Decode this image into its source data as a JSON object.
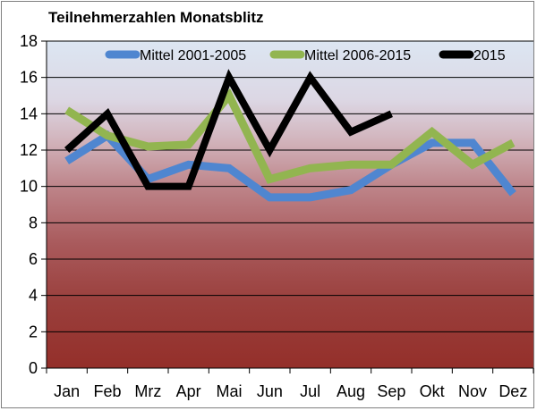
{
  "chart_data": {
    "type": "line",
    "title": "Teilnehmerzahlen Monatsblitz",
    "xlabel": "",
    "ylabel": "",
    "categories": [
      "Jan",
      "Feb",
      "Mrz",
      "Apr",
      "Mai",
      "Jun",
      "Jul",
      "Aug",
      "Sep",
      "Okt",
      "Nov",
      "Dez"
    ],
    "ylim": [
      0,
      18
    ],
    "yticks": [
      0,
      2,
      4,
      6,
      8,
      10,
      12,
      14,
      16,
      18
    ],
    "grid": true,
    "legend_position": "top",
    "series": [
      {
        "name": "Mittel 2001-2005",
        "color": "#4f86d0",
        "values": [
          11.4,
          12.8,
          10.4,
          11.2,
          11.0,
          9.4,
          9.4,
          9.8,
          11.2,
          12.4,
          12.4,
          9.6
        ]
      },
      {
        "name": "Mittel 2006-2015",
        "color": "#92b550",
        "values": [
          14.2,
          12.8,
          12.2,
          12.3,
          15.0,
          10.4,
          11.0,
          11.2,
          11.2,
          13.0,
          11.2,
          12.4
        ]
      },
      {
        "name": "2015",
        "color": "#000000",
        "values": [
          12,
          14,
          10,
          10,
          16,
          12,
          16,
          13,
          14,
          null,
          null,
          null
        ]
      }
    ]
  }
}
